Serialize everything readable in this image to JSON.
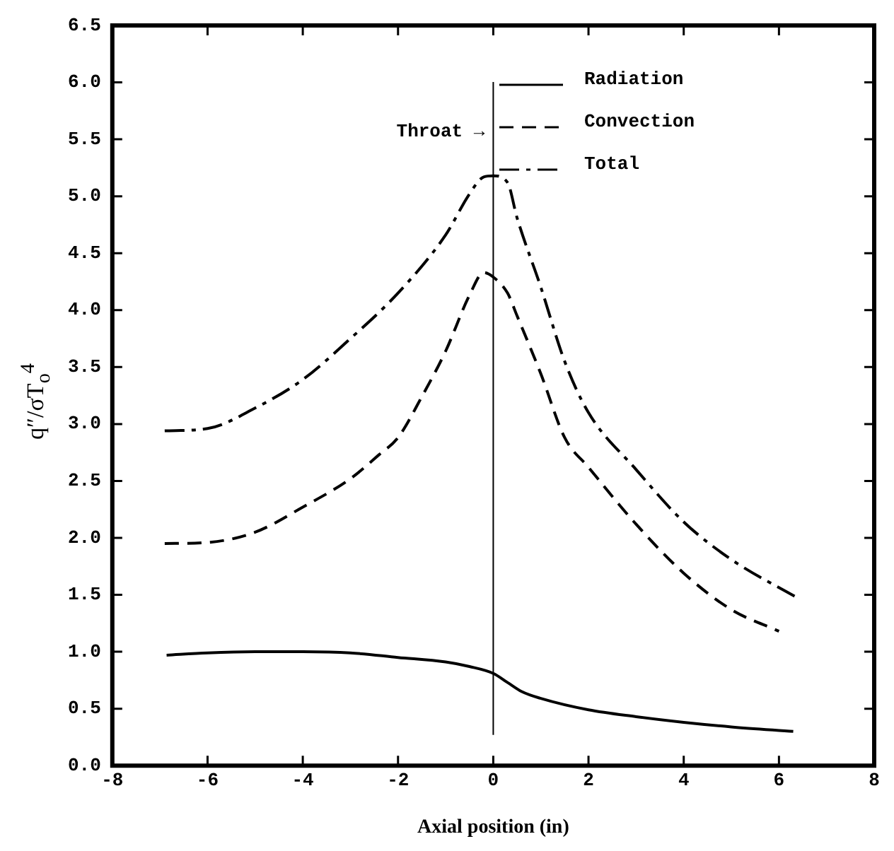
{
  "chart_data": {
    "type": "line",
    "xlabel": "Axial position (in)",
    "ylabel": "q″/σT$_{o}$$^{4}$",
    "xlim": [
      -8,
      8
    ],
    "xticks": [
      -8,
      -6,
      -4,
      -2,
      0,
      2,
      4,
      6,
      8
    ],
    "ylim": [
      0,
      6.5
    ],
    "yticks": [
      {
        "value": 0,
        "label": "0.0"
      },
      0.5,
      {
        "value": 1,
        "label": "1.0"
      },
      1.5,
      {
        "value": 2,
        "label": "2.0"
      },
      2.5,
      {
        "value": 3,
        "label": "3.0"
      },
      3.5,
      {
        "value": 4,
        "label": "4.0"
      },
      4.5,
      {
        "value": 5,
        "label": "5.0"
      },
      5.5,
      {
        "value": 6,
        "label": "6.0"
      },
      6.5
    ],
    "grid": false,
    "legend": "top right",
    "marker": "none",
    "ref_lines": [
      {
        "axis": "x",
        "value": 0,
        "label": "Throat →",
        "color": "#000000"
      }
    ],
    "series": [
      {
        "name": "Radiation",
        "color": "#000000",
        "line_style": "solid",
        "x": [
          -6.86,
          -6,
          -5,
          -4,
          -3,
          -2,
          -1,
          -0.5,
          0,
          0.3,
          0.6,
          1,
          2,
          3,
          4,
          5,
          6.3
        ],
        "values": [
          0.97,
          0.99,
          1.0,
          1.0,
          0.99,
          0.95,
          0.91,
          0.87,
          0.81,
          0.73,
          0.65,
          0.59,
          0.49,
          0.43,
          0.38,
          0.34,
          0.3
        ]
      },
      {
        "name": "Convection",
        "color": "#000000",
        "line_style": "dashed",
        "x": [
          -6.9,
          -6,
          -5,
          -4,
          -3,
          -2.4,
          -2,
          -1.5,
          -1,
          -0.5,
          -0.2,
          0,
          0.3,
          0.5,
          1,
          1.5,
          2,
          3,
          4,
          5,
          6
        ],
        "values": [
          1.95,
          1.96,
          2.05,
          2.27,
          2.52,
          2.73,
          2.88,
          3.24,
          3.64,
          4.13,
          4.33,
          4.29,
          4.15,
          3.95,
          3.44,
          2.88,
          2.62,
          2.12,
          1.69,
          1.37,
          1.18
        ]
      },
      {
        "name": "Total",
        "color": "#000000",
        "line_style": "dashdot",
        "x": [
          -6.9,
          -6,
          -5,
          -4,
          -3,
          -2,
          -1,
          -0.5,
          -0.2,
          0,
          0.3,
          0.5,
          1,
          1.5,
          2,
          3,
          4,
          5,
          6.4
        ],
        "values": [
          2.94,
          2.96,
          3.14,
          3.39,
          3.75,
          4.15,
          4.66,
          5.02,
          5.17,
          5.18,
          5.12,
          4.81,
          4.2,
          3.55,
          3.1,
          2.6,
          2.14,
          1.81,
          1.47
        ]
      }
    ]
  }
}
